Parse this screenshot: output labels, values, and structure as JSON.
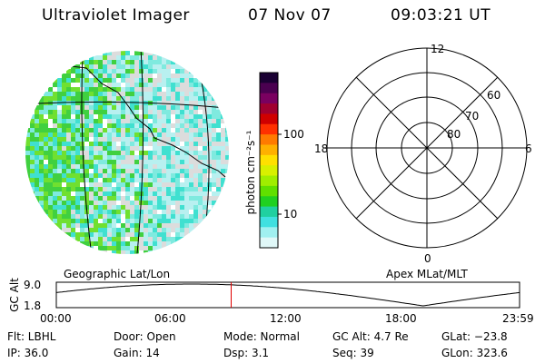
{
  "header": {
    "instrument": "Ultraviolet Imager",
    "date": "07 Nov 07",
    "time": "09:03:21 UT"
  },
  "geo_panel": {
    "label": "Geographic Lat/Lon"
  },
  "apex_panel": {
    "label": "Apex  MLat/MLT",
    "mlt_labels": {
      "top": "12",
      "left": "18",
      "right": "6",
      "bottom": "0"
    },
    "lat_labels": [
      "60",
      "70",
      "80"
    ]
  },
  "colorbar": {
    "unit_label": "photon cm⁻²s⁻¹",
    "tick_labels": [
      "100",
      "10"
    ],
    "colors": [
      "#1a0033",
      "#4a0050",
      "#7a0060",
      "#a00030",
      "#d00000",
      "#ff3000",
      "#ff7a00",
      "#ffb000",
      "#ffe000",
      "#d8f000",
      "#a0ee00",
      "#60e000",
      "#20d020",
      "#20d0a0",
      "#40e0e0",
      "#a0f0f0",
      "#e0f8f8"
    ]
  },
  "altitude_plot": {
    "ylabel": "GC Alt",
    "y_max_label": "9.0",
    "y_min_label": "1.8",
    "x_tick_labels": [
      "00:00",
      "06:00",
      "12:00",
      "18:00",
      "23:59"
    ],
    "marker_color": "#e00000",
    "current_time_hours": 9.06
  },
  "info": {
    "flt": "Flt: LBHL",
    "ip": "IP: 36.0",
    "door": "Door: Open",
    "gain": "Gain: 14",
    "mode": "Mode: Normal",
    "dsp": "Dsp:      3.1",
    "gc_alt": "GC Alt: 4.7 Re",
    "seq": "Seq: 39",
    "glat": "GLat: −23.8",
    "glon": "GLon: 323.6"
  }
}
